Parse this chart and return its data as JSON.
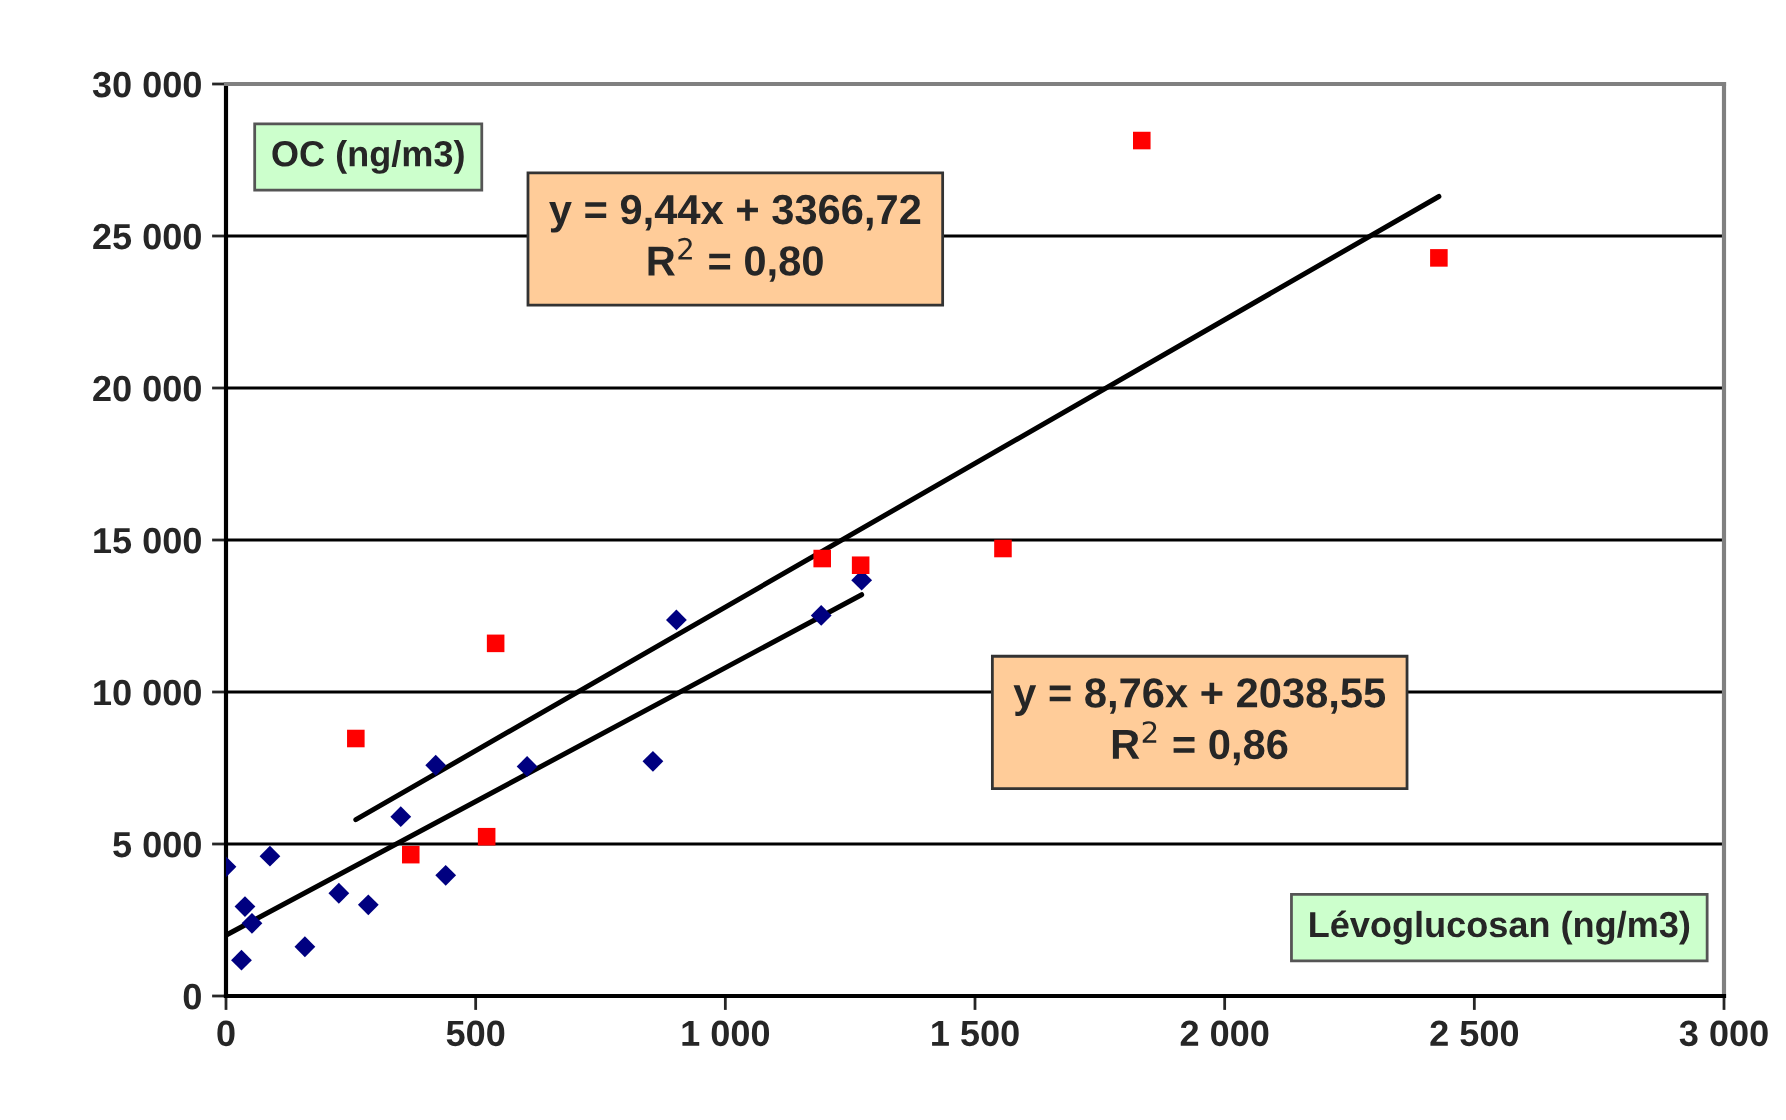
{
  "chart_data": {
    "type": "scatter",
    "xlabel": "Lévoglucosan (ng/m3)",
    "ylabel": "OC (ng/m3)",
    "xlim": [
      0,
      3000
    ],
    "ylim": [
      0,
      30000
    ],
    "xticks": [
      0,
      500,
      {
        "value": 1000,
        "label": "1 000"
      },
      {
        "value": 1500,
        "label": "1 500"
      },
      {
        "value": 2000,
        "label": "2 000"
      },
      {
        "value": 2500,
        "label": "2 500"
      },
      {
        "value": 3000,
        "label": "3 000"
      }
    ],
    "yticks": [
      0,
      {
        "value": 5000,
        "label": "5 000"
      },
      {
        "value": 10000,
        "label": "10 000"
      },
      {
        "value": 15000,
        "label": "15 000"
      },
      {
        "value": 20000,
        "label": "20 000"
      },
      {
        "value": 25000,
        "label": "25 000"
      },
      {
        "value": 30000,
        "label": "30 000"
      }
    ],
    "grid": "y",
    "series": [
      {
        "color": "#000080",
        "marker": "diamond",
        "x": [
          0,
          31,
          38,
          52,
          88,
          158,
          226,
          285,
          350,
          420,
          440,
          603,
          855,
          902,
          1192,
          1273
        ],
        "values": [
          4250,
          1180,
          2940,
          2390,
          4600,
          1620,
          3380,
          3000,
          5900,
          7590,
          3970,
          7550,
          7720,
          12370,
          12520,
          13680
        ]
      },
      {
        "color": "#ff0000",
        "marker": "square",
        "x": [
          260,
          370,
          522,
          540,
          1194,
          1271,
          1556,
          1834,
          2429
        ],
        "values": [
          8470,
          4650,
          5240,
          11600,
          14390,
          14170,
          14720,
          28140,
          24280
        ]
      },
      {
        "type": "line",
        "color": "#000000",
        "marker": "none",
        "x": [
          260,
          2429
        ],
        "values": [
          5800,
          26300
        ]
      },
      {
        "type": "line",
        "color": "#000000",
        "marker": "none",
        "x": [
          0,
          1273
        ],
        "values": [
          2000,
          13200
        ]
      }
    ],
    "annotations": [
      "y = 9,44x + 3366,72\nR$^{2}$ = 0,80",
      "y = 8,76x + 2038,55\nR$^{2}$ = 0,86"
    ]
  }
}
